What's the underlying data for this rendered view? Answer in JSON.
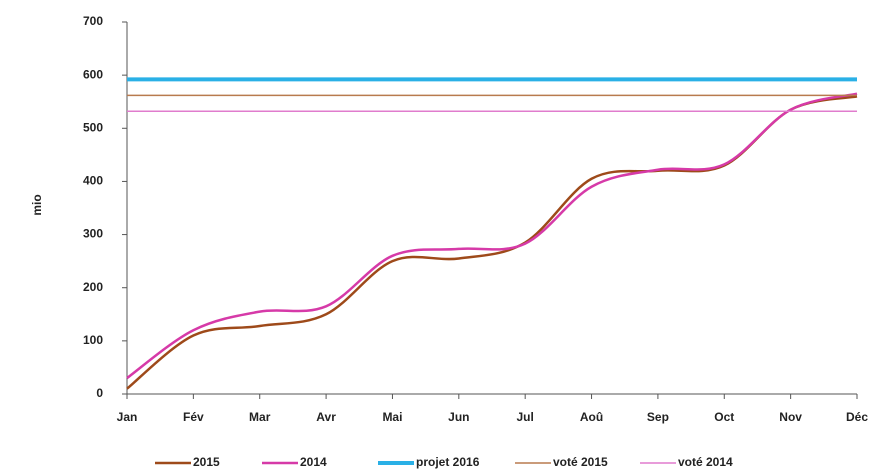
{
  "chart_data": {
    "type": "line",
    "y_label": "mio",
    "categories": [
      "Jan",
      "Fév",
      "Mar",
      "Avr",
      "Mai",
      "Jun",
      "Jul",
      "Aoû",
      "Sep",
      "Oct",
      "Nov",
      "Déc"
    ],
    "series": [
      {
        "name": "2015",
        "color": "#9e4a1a",
        "line_width": 2.5,
        "smooth": true,
        "values": [
          10,
          110,
          128,
          150,
          250,
          255,
          285,
          405,
          420,
          430,
          535,
          560
        ]
      },
      {
        "name": "2014",
        "color": "#d63aa8",
        "line_width": 2.5,
        "smooth": true,
        "values": [
          30,
          120,
          155,
          165,
          260,
          273,
          283,
          390,
          422,
          432,
          535,
          565
        ]
      },
      {
        "name": "projet 2016",
        "color": "#2ab0e6",
        "line_width": 4,
        "smooth": false,
        "values": [
          592,
          592,
          592,
          592,
          592,
          592,
          592,
          592,
          592,
          592,
          592,
          592
        ]
      },
      {
        "name": "voté 2015",
        "color": "#b87a4e",
        "line_width": 1.5,
        "smooth": false,
        "values": [
          562,
          562,
          562,
          562,
          562,
          562,
          562,
          562,
          562,
          562,
          562,
          562
        ]
      },
      {
        "name": "voté 2014",
        "color": "#e07ccd",
        "line_width": 1.5,
        "smooth": false,
        "values": [
          532,
          532,
          532,
          532,
          532,
          532,
          532,
          532,
          532,
          532,
          532,
          532
        ]
      }
    ],
    "ylim": [
      0,
      700
    ],
    "yticks": [
      0,
      100,
      200,
      300,
      400,
      500,
      600,
      700
    ],
    "grid": false,
    "legend": "bottom"
  }
}
